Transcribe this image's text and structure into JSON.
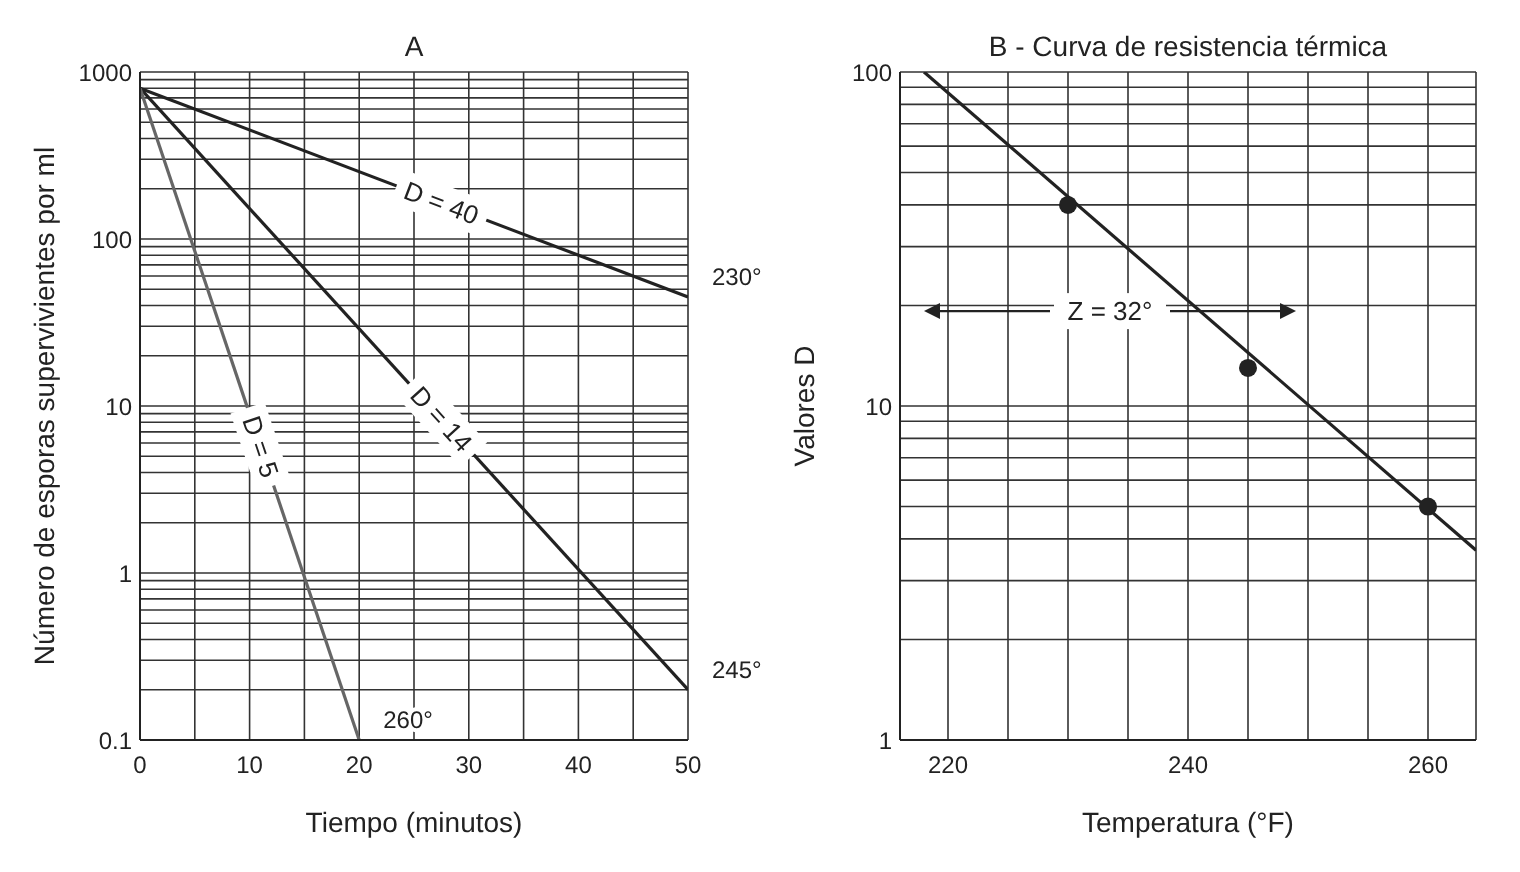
{
  "chart_data": [
    {
      "type": "line",
      "title": "A",
      "xlabel": "Tiempo (minutos)",
      "ylabel": "Número de esporas supervivientes por ml",
      "log": "y",
      "grid": true,
      "legend": false,
      "marker": "none",
      "line_style": "solid",
      "xlim": [
        0,
        50
      ],
      "xticks": [
        0,
        {
          "value": 5,
          "label": null
        },
        10,
        {
          "value": 15,
          "label": null
        },
        20,
        {
          "value": 25,
          "label": null
        },
        30,
        {
          "value": 35,
          "label": null
        },
        40,
        {
          "value": 45,
          "label": null
        },
        50
      ],
      "ylim": [
        0.1,
        1000
      ],
      "yticks": [
        0.1,
        {
          "value": 0.2,
          "label": null
        },
        {
          "value": 0.3,
          "label": null
        },
        {
          "value": 0.4,
          "label": null
        },
        {
          "value": 0.5,
          "label": null
        },
        {
          "value": 0.6,
          "label": null
        },
        {
          "value": 0.7,
          "label": null
        },
        {
          "value": 0.8,
          "label": null
        },
        {
          "value": 0.9,
          "label": null
        },
        1,
        {
          "value": 2,
          "label": null
        },
        {
          "value": 3,
          "label": null
        },
        {
          "value": 4,
          "label": null
        },
        {
          "value": 5,
          "label": null
        },
        {
          "value": 6,
          "label": null
        },
        {
          "value": 7,
          "label": null
        },
        {
          "value": 8,
          "label": null
        },
        {
          "value": 9,
          "label": null
        },
        10,
        {
          "value": 20,
          "label": null
        },
        {
          "value": 30,
          "label": null
        },
        {
          "value": 40,
          "label": null
        },
        {
          "value": 50,
          "label": null
        },
        {
          "value": 60,
          "label": null
        },
        {
          "value": 70,
          "label": null
        },
        {
          "value": 80,
          "label": null
        },
        {
          "value": 90,
          "label": null
        },
        100,
        {
          "value": 200,
          "label": null
        },
        {
          "value": 300,
          "label": null
        },
        {
          "value": 400,
          "label": null
        },
        {
          "value": 500,
          "label": null
        },
        {
          "value": 600,
          "label": null
        },
        {
          "value": 700,
          "label": null
        },
        {
          "value": 800,
          "label": null
        },
        {
          "value": 900,
          "label": null
        },
        1000
      ],
      "series": [
        {
          "name": "230°",
          "color": "#222222",
          "x": [
            0,
            50
          ],
          "values": [
            800,
            45
          ]
        },
        {
          "name": "245°",
          "color": "#222222",
          "x": [
            0,
            50
          ],
          "values": [
            800,
            0.2
          ]
        },
        {
          "name": "260°",
          "color": "#666666",
          "x": [
            0,
            20
          ],
          "values": [
            800,
            0.1
          ]
        }
      ],
      "annotations": [
        "D = 40",
        "D = 14",
        "D = 5"
      ]
    },
    {
      "type": "line",
      "title": "B - Curva de resistencia térmica",
      "xlabel": "Temperatura (°F)",
      "ylabel": "Valores D",
      "log": "y",
      "grid": true,
      "legend": false,
      "marker": "none",
      "line_style": "solid",
      "xlim": [
        216,
        264
      ],
      "xticks": [
        220,
        {
          "value": 225,
          "label": null
        },
        {
          "value": 230,
          "label": null
        },
        {
          "value": 235,
          "label": null
        },
        240,
        {
          "value": 245,
          "label": null
        },
        {
          "value": 250,
          "label": null
        },
        {
          "value": 255,
          "label": null
        },
        260
      ],
      "ylim": [
        1,
        100
      ],
      "yticks": [
        1,
        {
          "value": 2,
          "label": null
        },
        {
          "value": 3,
          "label": null
        },
        {
          "value": 4,
          "label": null
        },
        {
          "value": 5,
          "label": null
        },
        {
          "value": 6,
          "label": null
        },
        {
          "value": 7,
          "label": null
        },
        {
          "value": 8,
          "label": null
        },
        {
          "value": 9,
          "label": null
        },
        10,
        {
          "value": 20,
          "label": null
        },
        {
          "value": 30,
          "label": null
        },
        {
          "value": 40,
          "label": null
        },
        {
          "value": 50,
          "label": null
        },
        {
          "value": 60,
          "label": null
        },
        {
          "value": 70,
          "label": null
        },
        {
          "value": 80,
          "label": null
        },
        {
          "value": 90,
          "label": null
        },
        100
      ],
      "series": [
        {
          "color": "#222222",
          "x": [
            218,
            264
          ],
          "values": [
            100,
            3.7
          ]
        },
        {
          "type": "scatter",
          "marker": "circle",
          "color": "#222222",
          "x": [
            230,
            245,
            260
          ],
          "values": [
            40,
            13,
            5
          ]
        }
      ],
      "annotations": [
        "Z = 32°"
      ]
    }
  ]
}
